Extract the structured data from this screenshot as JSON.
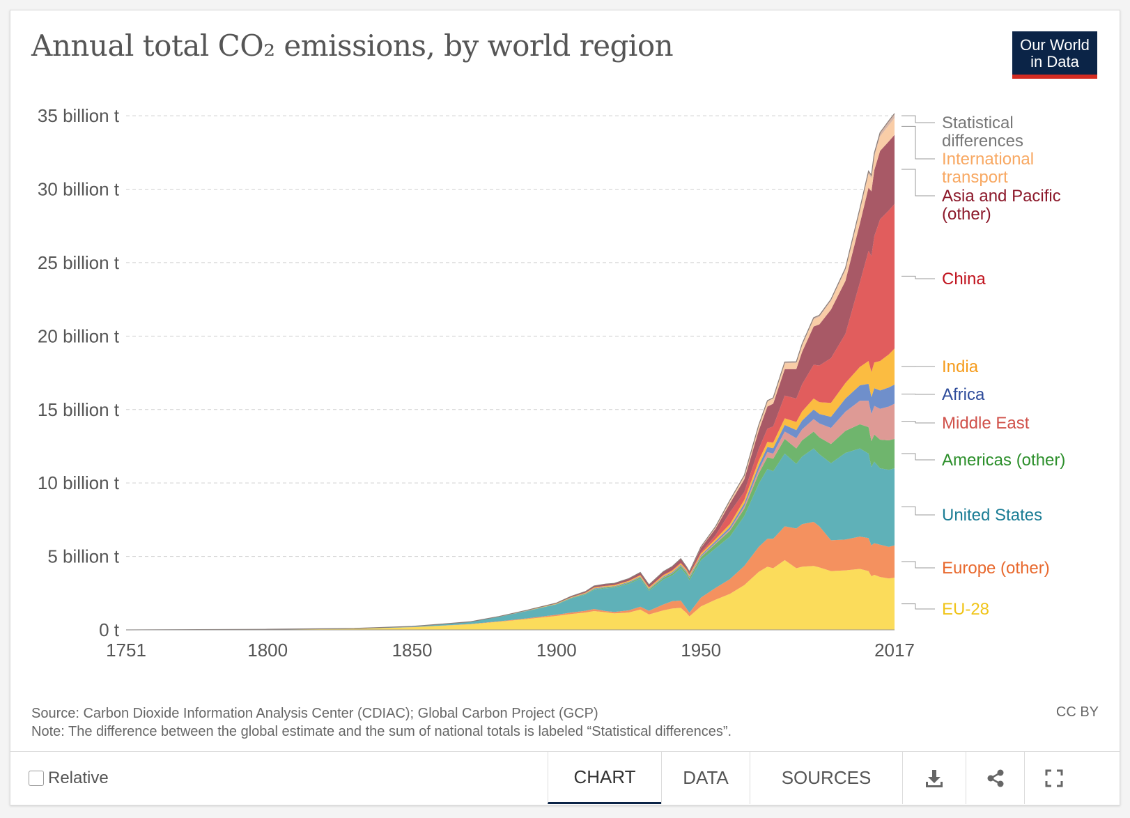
{
  "header": {
    "title": "Annual total CO₂ emissions, by world region",
    "logo_line1": "Our World",
    "logo_line2": "in Data"
  },
  "chart_data": {
    "type": "area",
    "stacked": true,
    "title": "Annual total CO₂ emissions, by world region",
    "xlabel": "",
    "ylabel": "",
    "xlim": [
      1751,
      2017
    ],
    "ylim": [
      0,
      36000000000
    ],
    "x_ticks": [
      "1751",
      "1800",
      "1850",
      "1900",
      "1950",
      "2017"
    ],
    "y_ticks": [
      {
        "value": 0,
        "label": "0 t"
      },
      {
        "value": 5000000000,
        "label": "5 billion t"
      },
      {
        "value": 10000000000,
        "label": "10 billion t"
      },
      {
        "value": 15000000000,
        "label": "15 billion t"
      },
      {
        "value": 20000000000,
        "label": "20 billion t"
      },
      {
        "value": 25000000000,
        "label": "25 billion t"
      },
      {
        "value": 30000000000,
        "label": "30 billion t"
      },
      {
        "value": 35000000000,
        "label": "35 billion t"
      }
    ],
    "x": [
      1751,
      1800,
      1830,
      1850,
      1860,
      1870,
      1880,
      1890,
      1900,
      1905,
      1910,
      1913,
      1917,
      1920,
      1925,
      1929,
      1932,
      1937,
      1940,
      1943,
      1945,
      1946,
      1950,
      1955,
      1960,
      1965,
      1970,
      1973,
      1975,
      1979,
      1983,
      1985,
      1989,
      1991,
      1995,
      2000,
      2005,
      2008,
      2009,
      2010,
      2012,
      2015,
      2017
    ],
    "series": [
      {
        "name": "EU-28",
        "color": "#fbdc5b",
        "label_color": "#f0c419",
        "values": [
          0,
          0.03,
          0.07,
          0.18,
          0.28,
          0.38,
          0.55,
          0.74,
          0.95,
          1.08,
          1.18,
          1.28,
          1.2,
          1.12,
          1.18,
          1.38,
          1.05,
          1.33,
          1.45,
          1.5,
          1.15,
          0.92,
          1.6,
          2.05,
          2.45,
          3.05,
          3.95,
          4.3,
          4.2,
          4.75,
          4.2,
          4.3,
          4.35,
          4.25,
          4.0,
          4.05,
          4.15,
          4.0,
          3.65,
          3.75,
          3.6,
          3.5,
          3.55
        ]
      },
      {
        "name": "Europe (other)",
        "color": "#f4915f",
        "label_color": "#e8692e",
        "values": [
          0,
          0,
          0,
          0.01,
          0.01,
          0.02,
          0.03,
          0.05,
          0.08,
          0.1,
          0.12,
          0.14,
          0.08,
          0.1,
          0.15,
          0.2,
          0.25,
          0.4,
          0.5,
          0.5,
          0.3,
          0.25,
          0.6,
          0.8,
          1.0,
          1.3,
          1.7,
          1.9,
          2.0,
          2.3,
          2.7,
          2.9,
          3.0,
          2.8,
          2.1,
          2.1,
          2.2,
          2.25,
          2.1,
          2.15,
          2.2,
          2.15,
          2.2
        ]
      },
      {
        "name": "United States",
        "color": "#5fb1b8",
        "label_color": "#1b7d95",
        "values": [
          0,
          0.01,
          0.03,
          0.05,
          0.1,
          0.15,
          0.3,
          0.5,
          0.7,
          0.95,
          1.1,
          1.3,
          1.55,
          1.65,
          1.8,
          1.9,
          1.35,
          1.7,
          1.75,
          2.2,
          2.3,
          2.2,
          2.55,
          2.7,
          2.9,
          3.4,
          4.3,
          4.75,
          4.6,
          4.95,
          4.4,
          4.6,
          5.0,
          4.9,
          5.25,
          5.9,
          6.0,
          5.75,
          5.35,
          5.55,
          5.2,
          5.25,
          5.25
        ]
      },
      {
        "name": "Americas (other)",
        "color": "#6fb56d",
        "label_color": "#2c8f2b",
        "values": [
          0,
          0,
          0,
          0,
          0,
          0,
          0.01,
          0.01,
          0.02,
          0.03,
          0.04,
          0.05,
          0.05,
          0.05,
          0.07,
          0.09,
          0.09,
          0.12,
          0.13,
          0.14,
          0.15,
          0.16,
          0.2,
          0.3,
          0.4,
          0.5,
          0.7,
          0.8,
          0.85,
          1.0,
          1.05,
          1.1,
          1.15,
          1.15,
          1.3,
          1.5,
          1.65,
          1.8,
          1.75,
          1.85,
          1.95,
          2.0,
          2.0
        ]
      },
      {
        "name": "Middle East",
        "color": "#de9a95",
        "label_color": "#d0514a",
        "values": [
          0,
          0,
          0,
          0,
          0,
          0,
          0,
          0,
          0,
          0,
          0,
          0.01,
          0.01,
          0.01,
          0.01,
          0.01,
          0.01,
          0.02,
          0.02,
          0.02,
          0.02,
          0.03,
          0.04,
          0.06,
          0.1,
          0.15,
          0.25,
          0.35,
          0.35,
          0.5,
          0.7,
          0.75,
          0.85,
          0.95,
          1.1,
          1.3,
          1.6,
          1.8,
          1.85,
          1.95,
          2.1,
          2.3,
          2.4
        ]
      },
      {
        "name": "Africa",
        "color": "#6f8fcb",
        "label_color": "#2d4b9a",
        "values": [
          0,
          0,
          0,
          0,
          0,
          0,
          0,
          0.01,
          0.01,
          0.02,
          0.03,
          0.04,
          0.04,
          0.04,
          0.05,
          0.05,
          0.05,
          0.06,
          0.07,
          0.07,
          0.07,
          0.08,
          0.09,
          0.12,
          0.15,
          0.2,
          0.3,
          0.35,
          0.37,
          0.45,
          0.55,
          0.6,
          0.65,
          0.65,
          0.75,
          0.9,
          1.05,
          1.15,
          1.15,
          1.2,
          1.25,
          1.3,
          1.3
        ]
      },
      {
        "name": "India",
        "color": "#fbbc41",
        "label_color": "#f59b1b",
        "values": [
          0,
          0,
          0,
          0,
          0,
          0,
          0.01,
          0.02,
          0.03,
          0.04,
          0.05,
          0.06,
          0.06,
          0.07,
          0.07,
          0.08,
          0.08,
          0.09,
          0.1,
          0.1,
          0.1,
          0.1,
          0.12,
          0.15,
          0.2,
          0.25,
          0.32,
          0.35,
          0.38,
          0.45,
          0.55,
          0.62,
          0.75,
          0.8,
          0.95,
          1.05,
          1.25,
          1.55,
          1.7,
          1.75,
          2.0,
          2.25,
          2.45
        ]
      },
      {
        "name": "China",
        "color": "#e15d5d",
        "label_color": "#c0121d",
        "values": [
          0,
          0,
          0,
          0,
          0,
          0,
          0,
          0,
          0,
          0,
          0.01,
          0.01,
          0.01,
          0.01,
          0.01,
          0.02,
          0.02,
          0.03,
          0.04,
          0.04,
          0.05,
          0.05,
          0.08,
          0.25,
          0.8,
          0.55,
          0.8,
          0.9,
          1.1,
          1.55,
          1.6,
          1.85,
          2.3,
          2.5,
          3.05,
          3.35,
          5.75,
          7.5,
          7.9,
          8.6,
          9.65,
          9.8,
          9.85
        ]
      },
      {
        "name": "Asia and Pacific (other)",
        "color": "#a85966",
        "label_color": "#8b1729",
        "values": [
          0,
          0,
          0,
          0,
          0,
          0,
          0.01,
          0.02,
          0.04,
          0.06,
          0.08,
          0.1,
          0.12,
          0.12,
          0.15,
          0.18,
          0.17,
          0.22,
          0.25,
          0.28,
          0.15,
          0.12,
          0.3,
          0.45,
          0.6,
          0.85,
          1.25,
          1.5,
          1.55,
          1.8,
          2.0,
          2.2,
          2.6,
          2.8,
          3.3,
          3.6,
          4.0,
          4.3,
          4.4,
          4.5,
          4.65,
          4.7,
          4.7
        ]
      },
      {
        "name": "International transport",
        "color": "#f9cda7",
        "label_color": "#f8a862",
        "values": [
          0,
          0,
          0,
          0,
          0,
          0,
          0,
          0,
          0,
          0,
          0,
          0,
          0,
          0,
          0,
          0,
          0,
          0,
          0,
          0,
          0,
          0.05,
          0.08,
          0.12,
          0.17,
          0.22,
          0.32,
          0.35,
          0.35,
          0.4,
          0.42,
          0.45,
          0.5,
          0.52,
          0.6,
          0.75,
          0.88,
          0.95,
          0.9,
          0.95,
          1.0,
          1.1,
          1.15
        ]
      },
      {
        "name": "Statistical differences",
        "color": "#d7b7a9",
        "label_color": "#777777",
        "values": [
          0,
          0,
          0,
          0,
          0,
          0,
          0,
          0,
          0,
          0,
          0,
          0,
          0,
          0,
          0,
          0,
          0,
          0,
          0,
          0,
          0,
          0,
          0,
          0.02,
          0.05,
          0.05,
          0.06,
          0.05,
          0.05,
          0.08,
          0.08,
          0.09,
          0.1,
          0.1,
          0.1,
          0.12,
          0.15,
          0.18,
          0.2,
          0.2,
          0.25,
          0.3,
          0.3
        ]
      }
    ],
    "legend_labels": [
      {
        "key": "Statistical differences",
        "lines": [
          "Statistical",
          "differences"
        ]
      },
      {
        "key": "International transport",
        "lines": [
          "International",
          "transport"
        ]
      },
      {
        "key": "Asia and Pacific (other)",
        "lines": [
          "Asia and Pacific",
          "(other)"
        ]
      },
      {
        "key": "China",
        "lines": [
          "China"
        ]
      },
      {
        "key": "India",
        "lines": [
          "India"
        ]
      },
      {
        "key": "Africa",
        "lines": [
          "Africa"
        ]
      },
      {
        "key": "Middle East",
        "lines": [
          "Middle East"
        ]
      },
      {
        "key": "Americas (other)",
        "lines": [
          "Americas (other)"
        ]
      },
      {
        "key": "United States",
        "lines": [
          "United States"
        ]
      },
      {
        "key": "Europe (other)",
        "lines": [
          "Europe (other)"
        ]
      },
      {
        "key": "EU-28",
        "lines": [
          "EU-28"
        ]
      }
    ]
  },
  "footer_text": {
    "source": "Source: Carbon Dioxide Information Analysis Center (CDIAC); Global Carbon Project (GCP)",
    "note": "Note: The difference between the global estimate and the sum of national totals is labeled “Statistical differences”.",
    "license": "CC BY"
  },
  "controls": {
    "relative_label": "Relative",
    "tabs": [
      "CHART",
      "DATA",
      "SOURCES"
    ],
    "active_tab": "CHART",
    "icons": [
      "download-icon",
      "share-icon",
      "fullscreen-icon"
    ]
  }
}
